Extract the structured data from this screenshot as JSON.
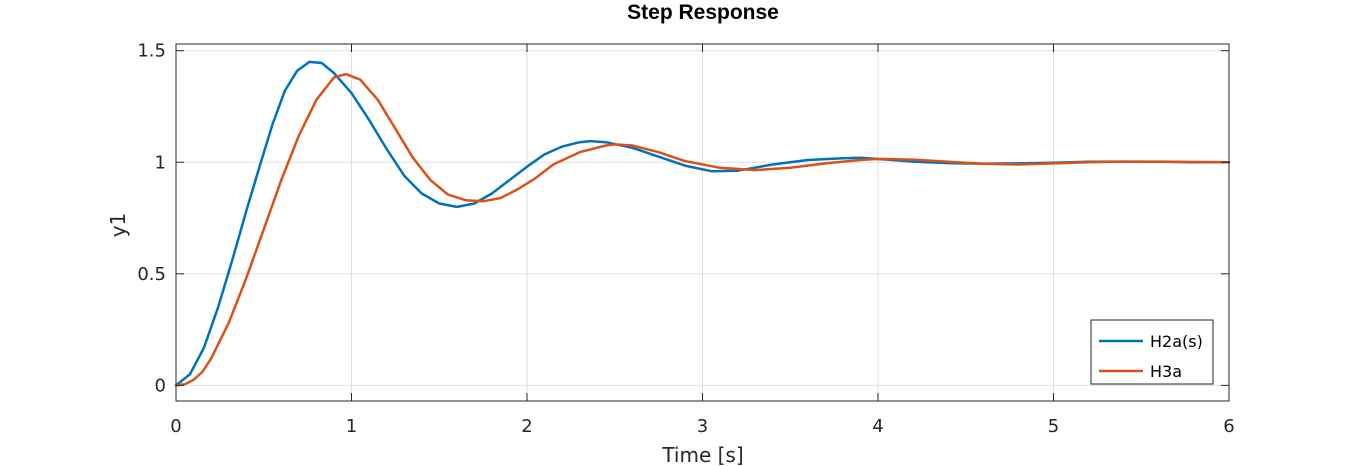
{
  "chart_data": {
    "type": "line",
    "title": "Step Response",
    "xlabel": "Time [s]",
    "ylabel": "y1",
    "xlim": [
      0,
      6
    ],
    "ylim": [
      -0.07,
      1.53
    ],
    "xticks": [
      0,
      1,
      2,
      3,
      4,
      5,
      6
    ],
    "yticks": [
      0,
      0.5,
      1,
      1.5
    ],
    "grid": true,
    "legend_position": "bottom-right",
    "series": [
      {
        "name": "H2a(s)",
        "color": "#0072BD",
        "x": [
          0,
          0.08,
          0.16,
          0.24,
          0.32,
          0.4,
          0.48,
          0.55,
          0.62,
          0.69,
          0.76,
          0.83,
          0.9,
          1.0,
          1.1,
          1.2,
          1.3,
          1.4,
          1.5,
          1.6,
          1.7,
          1.8,
          1.9,
          2.0,
          2.1,
          2.2,
          2.3,
          2.36,
          2.45,
          2.6,
          2.75,
          2.9,
          3.05,
          3.2,
          3.4,
          3.6,
          3.8,
          3.9,
          4.05,
          4.2,
          4.4,
          4.6,
          4.8,
          5.0,
          5.2,
          5.4,
          5.6,
          5.8,
          6.0
        ],
        "values": [
          0,
          0.05,
          0.17,
          0.35,
          0.56,
          0.78,
          0.99,
          1.17,
          1.32,
          1.41,
          1.45,
          1.445,
          1.4,
          1.31,
          1.19,
          1.06,
          0.94,
          0.86,
          0.815,
          0.8,
          0.815,
          0.86,
          0.92,
          0.98,
          1.035,
          1.07,
          1.09,
          1.095,
          1.09,
          1.065,
          1.025,
          0.985,
          0.96,
          0.962,
          0.99,
          1.01,
          1.018,
          1.02,
          1.012,
          1.003,
          0.996,
          0.993,
          0.995,
          0.998,
          1.002,
          1.003,
          1.002,
          1.0,
          1.0
        ]
      },
      {
        "name": "H3a",
        "color": "#D95319",
        "x": [
          0,
          0.05,
          0.1,
          0.15,
          0.2,
          0.3,
          0.4,
          0.5,
          0.6,
          0.7,
          0.8,
          0.9,
          0.97,
          1.05,
          1.15,
          1.25,
          1.35,
          1.45,
          1.55,
          1.65,
          1.75,
          1.85,
          1.95,
          2.05,
          2.15,
          2.3,
          2.45,
          2.5,
          2.6,
          2.75,
          2.9,
          3.1,
          3.3,
          3.5,
          3.7,
          3.9,
          4.0,
          4.2,
          4.4,
          4.6,
          4.8,
          5.0,
          5.2,
          5.4,
          5.6,
          5.8,
          6.0
        ],
        "values": [
          0,
          0.005,
          0.025,
          0.06,
          0.12,
          0.28,
          0.48,
          0.7,
          0.92,
          1.12,
          1.28,
          1.38,
          1.395,
          1.37,
          1.28,
          1.15,
          1.02,
          0.92,
          0.855,
          0.83,
          0.825,
          0.84,
          0.88,
          0.93,
          0.99,
          1.045,
          1.075,
          1.08,
          1.075,
          1.045,
          1.005,
          0.975,
          0.965,
          0.975,
          0.995,
          1.01,
          1.015,
          1.012,
          1.002,
          0.993,
          0.99,
          0.995,
          1.0,
          1.003,
          1.003,
          1.001,
          1.0
        ]
      }
    ]
  }
}
